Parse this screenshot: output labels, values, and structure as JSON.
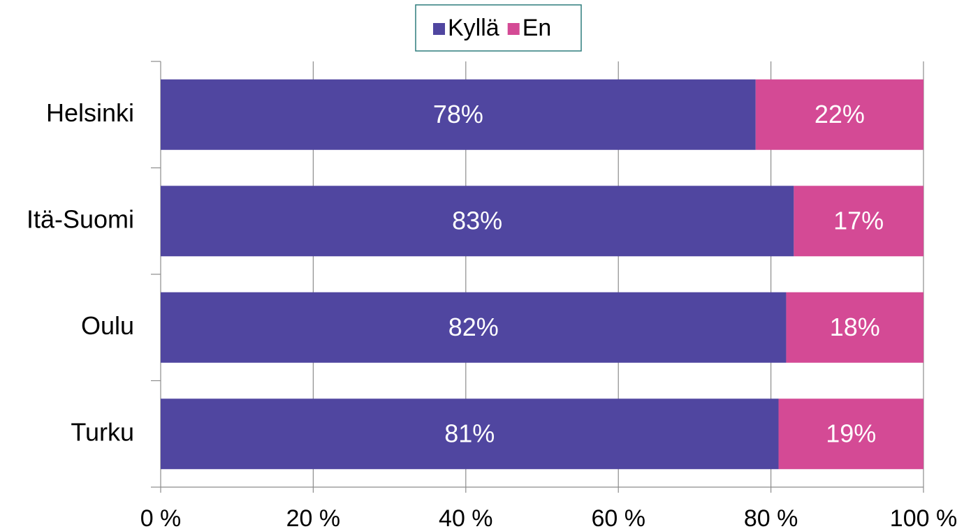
{
  "chart_data": {
    "type": "stacked-barh",
    "categories": [
      "Helsinki",
      "Itä-Suomi",
      "Oulu",
      "Turku"
    ],
    "series": [
      {
        "name": "Kyllä",
        "color": "#5046a0",
        "values": [
          78,
          83,
          82,
          81
        ],
        "value_labels": [
          "78%",
          "83%",
          "82%",
          "81%"
        ]
      },
      {
        "name": "En",
        "color": "#d44a95",
        "values": [
          22,
          17,
          18,
          19
        ],
        "value_labels": [
          "22%",
          "17%",
          "18%",
          "19%"
        ]
      }
    ],
    "xlim": [
      0,
      100
    ],
    "xticks": [
      {
        "value": 0,
        "label": "0 %"
      },
      {
        "value": 20,
        "label": "20 %"
      },
      {
        "value": 40,
        "label": "40 %"
      },
      {
        "value": 60,
        "label": "60 %"
      },
      {
        "value": 80,
        "label": "80 %"
      },
      {
        "value": 100,
        "label": "100 %"
      }
    ],
    "grid": true,
    "legend": "top"
  }
}
